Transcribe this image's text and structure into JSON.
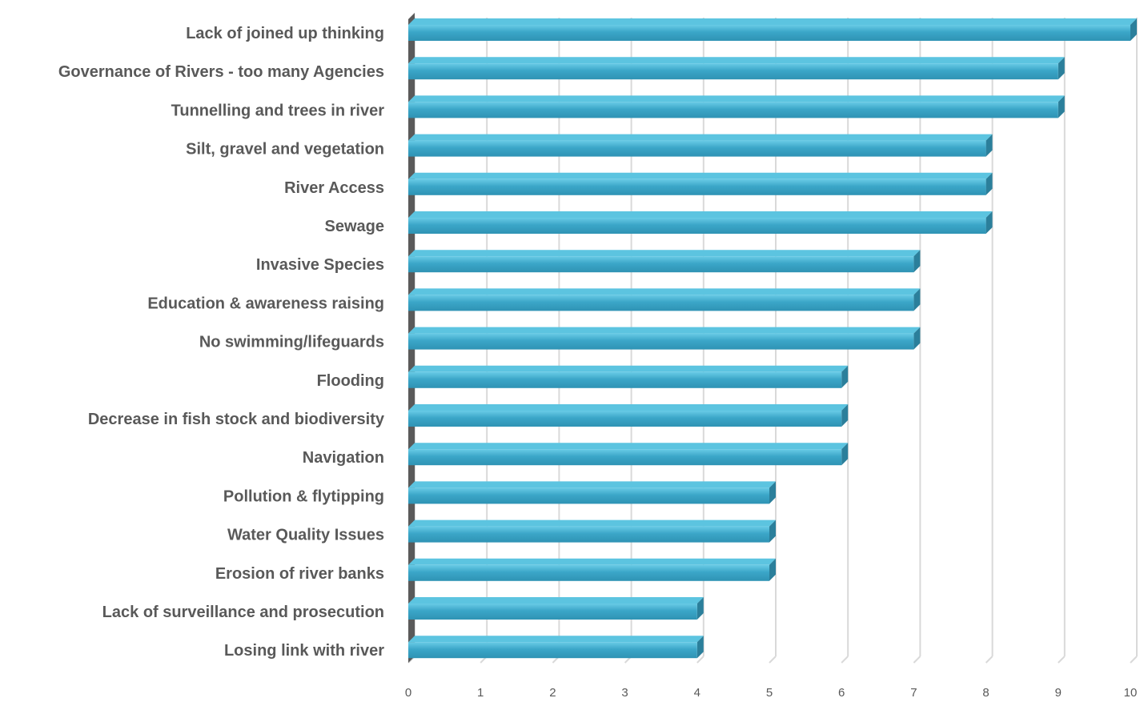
{
  "chart_data": {
    "type": "bar",
    "orientation": "horizontal",
    "style": "3d-clustered-bar",
    "categories": [
      "Lack of joined up thinking",
      "Governance of Rivers - too many Agencies",
      "Tunnelling and trees in river",
      "Silt, gravel and vegetation",
      "River Access",
      "Sewage",
      "Invasive Species",
      "Education & awareness raising",
      "No swimming/lifeguards",
      "Flooding",
      "Decrease in fish stock and biodiversity",
      "Navigation",
      "Pollution & flytipping",
      "Water Quality Issues",
      "Erosion of river banks",
      "Lack of surveillance and prosecution",
      "Losing link with river"
    ],
    "values": [
      10,
      9,
      9,
      8,
      8,
      8,
      7,
      7,
      7,
      6,
      6,
      6,
      5,
      5,
      5,
      4,
      4
    ],
    "xlim": [
      0,
      10
    ],
    "ticks": [
      "0",
      "1",
      "2",
      "3",
      "4",
      "5",
      "6",
      "7",
      "8",
      "9",
      "10"
    ],
    "title": "",
    "xlabel": "",
    "ylabel": "",
    "grid": true,
    "legend": "none",
    "colors": {
      "bar_front": "#3ba6c8",
      "bar_top": "#5cc4e0",
      "bar_side": "#2b7f9b",
      "wall": "#5a5a5a",
      "grid": "#d9d9d9",
      "text": "#595959"
    }
  }
}
